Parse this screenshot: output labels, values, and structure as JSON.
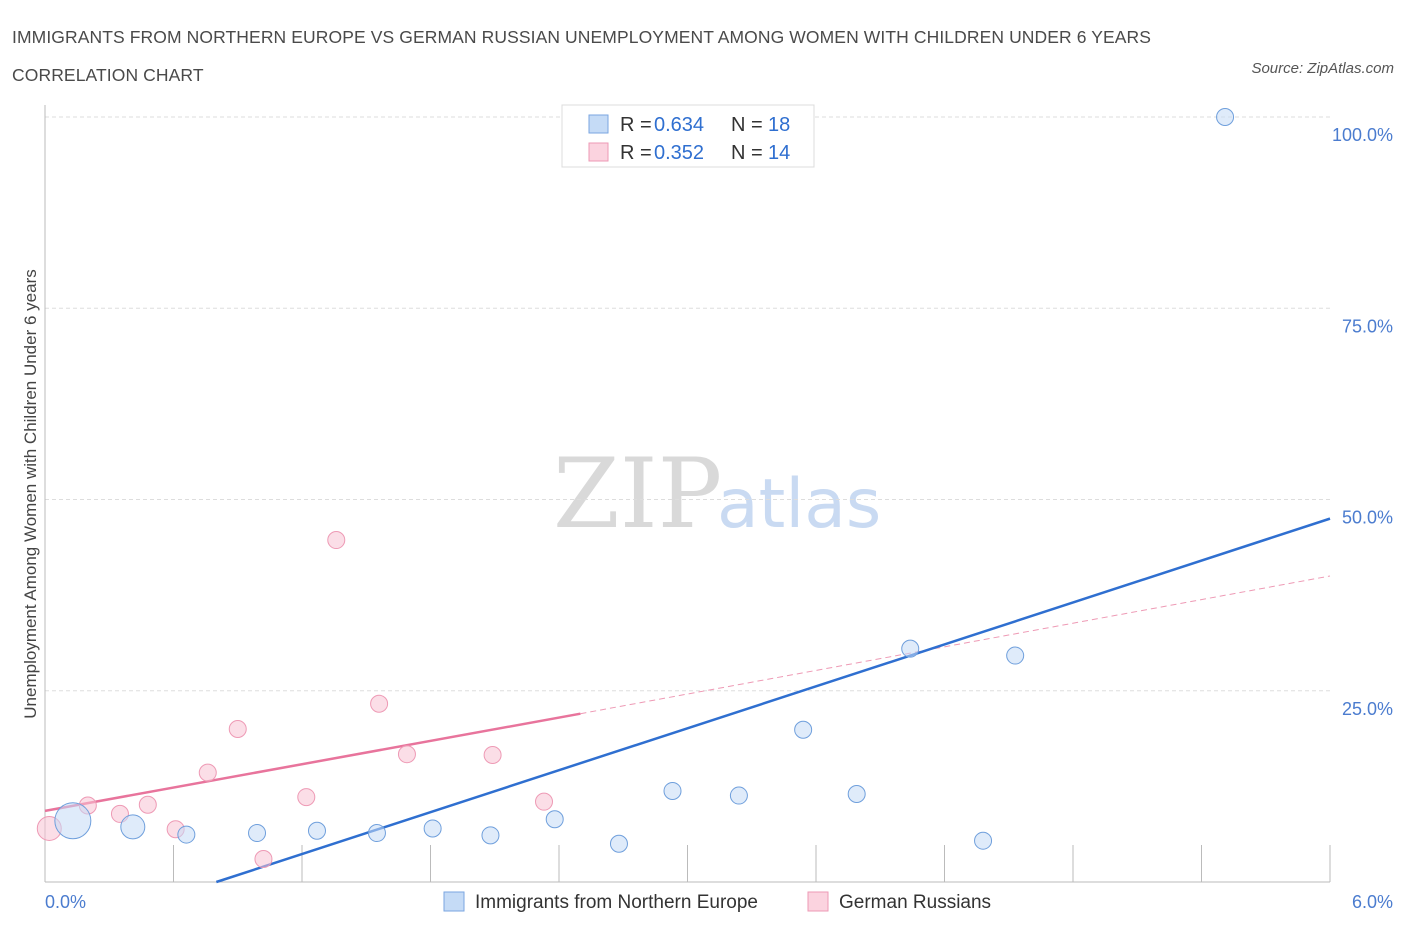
{
  "title": "IMMIGRANTS FROM NORTHERN EUROPE VS GERMAN RUSSIAN UNEMPLOYMENT AMONG WOMEN WITH CHILDREN UNDER 6 YEARS CORRELATION CHART",
  "source": "Source: ZipAtlas.com",
  "watermark": {
    "zip": "ZIP",
    "atlas": "atlas"
  },
  "legend": {
    "r_label": "R =",
    "n_label": "N =",
    "series": [
      {
        "name": "Immigrants from Northern Europe",
        "r": "0.634",
        "n": "18",
        "color": "#a9c8f0",
        "stroke": "#7aa6e0"
      },
      {
        "name": "German Russians",
        "r": "0.352",
        "n": "14",
        "color": "#f7c3d3",
        "stroke": "#ee9ab5"
      }
    ]
  },
  "chart_data": {
    "type": "scatter",
    "title": "IMMIGRANTS FROM NORTHERN EUROPE VS GERMAN RUSSIAN UNEMPLOYMENT AMONG WOMEN WITH CHILDREN UNDER 6 YEARS CORRELATION CHART",
    "xlabel": "",
    "ylabel": "Unemployment Among Women with Children Under 6 years",
    "xlim": [
      0,
      6
    ],
    "ylim": [
      0,
      100
    ],
    "x_tick_labels": [
      "0.0%",
      "6.0%"
    ],
    "y_tick_labels": [
      "25.0%",
      "50.0%",
      "75.0%",
      "100.0%"
    ],
    "y_ticks": [
      25,
      50,
      75,
      100
    ],
    "series": [
      {
        "name": "Immigrants from Northern Europe",
        "color": "#4a86d8",
        "points": [
          {
            "x": 0.13,
            "y": 8.0,
            "size": "large"
          },
          {
            "x": 0.41,
            "y": 7.2,
            "size": "medium"
          },
          {
            "x": 0.66,
            "y": 6.2
          },
          {
            "x": 0.99,
            "y": 6.4
          },
          {
            "x": 1.27,
            "y": 6.7
          },
          {
            "x": 1.55,
            "y": 6.4
          },
          {
            "x": 1.81,
            "y": 7.0
          },
          {
            "x": 2.08,
            "y": 6.1
          },
          {
            "x": 2.38,
            "y": 8.2
          },
          {
            "x": 2.68,
            "y": 5.0
          },
          {
            "x": 2.93,
            "y": 11.9
          },
          {
            "x": 3.24,
            "y": 11.3
          },
          {
            "x": 3.54,
            "y": 19.9
          },
          {
            "x": 3.79,
            "y": 11.5
          },
          {
            "x": 4.04,
            "y": 30.5
          },
          {
            "x": 4.38,
            "y": 5.4
          },
          {
            "x": 4.53,
            "y": 29.6
          },
          {
            "x": 5.51,
            "y": 100.0
          }
        ],
        "trendline": {
          "x": [
            0.8,
            6.0
          ],
          "y": [
            0.0,
            47.5
          ]
        }
      },
      {
        "name": "German Russians",
        "color": "#e8749c",
        "points": [
          {
            "x": 0.02,
            "y": 7.0,
            "size": "medium"
          },
          {
            "x": 0.2,
            "y": 10.0
          },
          {
            "x": 0.35,
            "y": 8.9
          },
          {
            "x": 0.48,
            "y": 10.1
          },
          {
            "x": 0.61,
            "y": 6.9
          },
          {
            "x": 0.76,
            "y": 14.3
          },
          {
            "x": 0.9,
            "y": 20.0
          },
          {
            "x": 1.02,
            "y": 3.0
          },
          {
            "x": 1.22,
            "y": 11.1
          },
          {
            "x": 1.36,
            "y": 44.7
          },
          {
            "x": 1.56,
            "y": 23.3
          },
          {
            "x": 1.69,
            "y": 16.7
          },
          {
            "x": 2.09,
            "y": 16.6
          },
          {
            "x": 2.33,
            "y": 10.5
          }
        ],
        "trendline": {
          "x": [
            0.0,
            2.5
          ],
          "y": [
            9.3,
            22.0
          ]
        },
        "trendline_extension": {
          "x": [
            2.5,
            6.0
          ],
          "y": [
            22.0,
            40.0
          ]
        }
      }
    ]
  }
}
